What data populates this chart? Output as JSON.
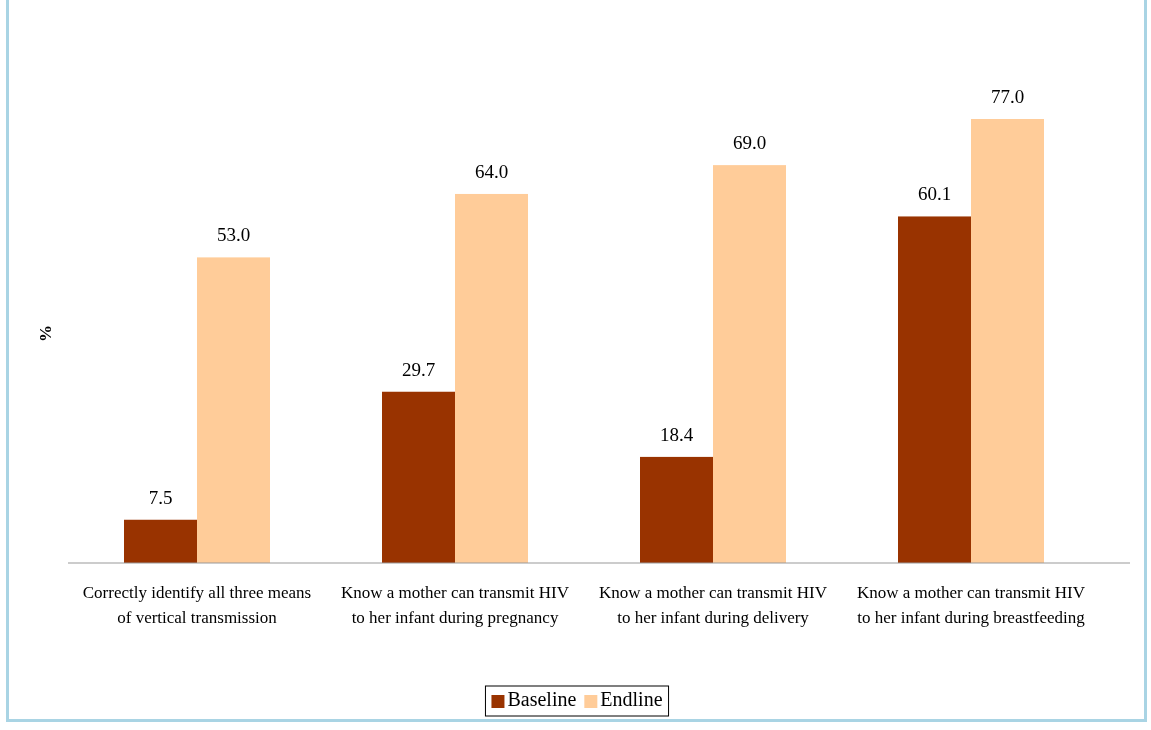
{
  "chart_data": {
    "type": "bar",
    "ylabel": "%",
    "categories": [
      "Correctly identify all three means of vertical transmission",
      "Know a mother can transmit HIV to her infant during pregnancy",
      "Know a mother can transmit HIV to her infant during delivery",
      "Know a mother can transmit HIV to her infant during breastfeeding"
    ],
    "series": [
      {
        "name": "Baseline",
        "color": "#993300",
        "values": [
          7.5,
          29.7,
          18.4,
          60.1
        ],
        "value_labels": [
          "7.5",
          "29.7",
          "18.4",
          "60.1"
        ]
      },
      {
        "name": "Endline",
        "color": "#ffcc99",
        "values": [
          53.0,
          64.0,
          69.0,
          77.0
        ],
        "value_labels": [
          "53.0",
          "64.0",
          "69.0",
          "77.0"
        ]
      }
    ],
    "legend": "bottom",
    "tick_labels": "x"
  }
}
